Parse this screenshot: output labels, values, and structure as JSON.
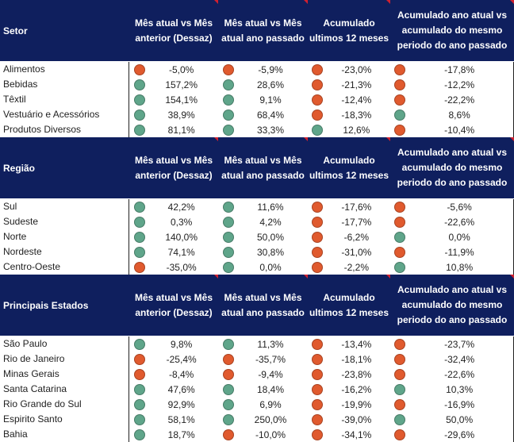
{
  "colors": {
    "header": "#0f1f5e",
    "positive": "#5fa58a",
    "negative": "#e05a2e"
  },
  "columns": [
    "Mês atual vs Mês anterior (Dessaz)",
    "Mês atual vs Mês atual ano passado",
    "Acumulado ultimos 12 meses",
    "Acumulado ano atual vs acumulado do mesmo periodo do ano passado"
  ],
  "sections": [
    {
      "title": "Setor",
      "rows": [
        {
          "label": "Alimentos",
          "values": [
            "-5,0%",
            "-5,9%",
            "-23,0%",
            "-17,8%"
          ]
        },
        {
          "label": "Bebidas",
          "values": [
            "157,2%",
            "28,6%",
            "-21,3%",
            "-12,2%"
          ]
        },
        {
          "label": "Têxtil",
          "values": [
            "154,1%",
            "9,1%",
            "-12,4%",
            "-22,2%"
          ]
        },
        {
          "label": "Vestuário e Acessórios",
          "values": [
            "38,9%",
            "68,4%",
            "-18,3%",
            "8,6%"
          ]
        },
        {
          "label": "Produtos Diversos",
          "values": [
            "81,1%",
            "33,3%",
            "12,6%",
            "-10,4%"
          ]
        }
      ]
    },
    {
      "title": "Região",
      "rows": [
        {
          "label": "Sul",
          "values": [
            "42,2%",
            "11,6%",
            "-17,6%",
            "-5,6%"
          ]
        },
        {
          "label": "Sudeste",
          "values": [
            "0,3%",
            "4,2%",
            "-17,7%",
            "-22,6%"
          ]
        },
        {
          "label": "Norte",
          "values": [
            "140,0%",
            "50,0%",
            "-6,2%",
            "0,0%"
          ]
        },
        {
          "label": "Nordeste",
          "values": [
            "74,1%",
            "30,8%",
            "-31,0%",
            "-11,9%"
          ]
        },
        {
          "label": "Centro-Oeste",
          "values": [
            "-35,0%",
            "0,0%",
            "-2,2%",
            "10,8%"
          ]
        }
      ]
    },
    {
      "title": "Principais Estados",
      "rows": [
        {
          "label": "São Paulo",
          "values": [
            "9,8%",
            "11,3%",
            "-13,4%",
            "-23,7%"
          ]
        },
        {
          "label": "Rio de Janeiro",
          "values": [
            "-25,4%",
            "-35,7%",
            "-18,1%",
            "-32,4%"
          ]
        },
        {
          "label": "Minas Gerais",
          "values": [
            "-8,4%",
            "-9,4%",
            "-23,8%",
            "-22,6%"
          ]
        },
        {
          "label": "Santa Catarina",
          "values": [
            "47,6%",
            "18,4%",
            "-16,2%",
            "10,3%"
          ]
        },
        {
          "label": "Rio Grande do Sul",
          "values": [
            "92,9%",
            "6,9%",
            "-19,9%",
            "-16,9%"
          ]
        },
        {
          "label": "Espirito Santo",
          "values": [
            "58,1%",
            "250,0%",
            "-39,0%",
            "50,0%"
          ]
        },
        {
          "label": "Bahia",
          "values": [
            "18,7%",
            "-10,0%",
            "-34,1%",
            "-29,6%"
          ]
        }
      ]
    }
  ]
}
